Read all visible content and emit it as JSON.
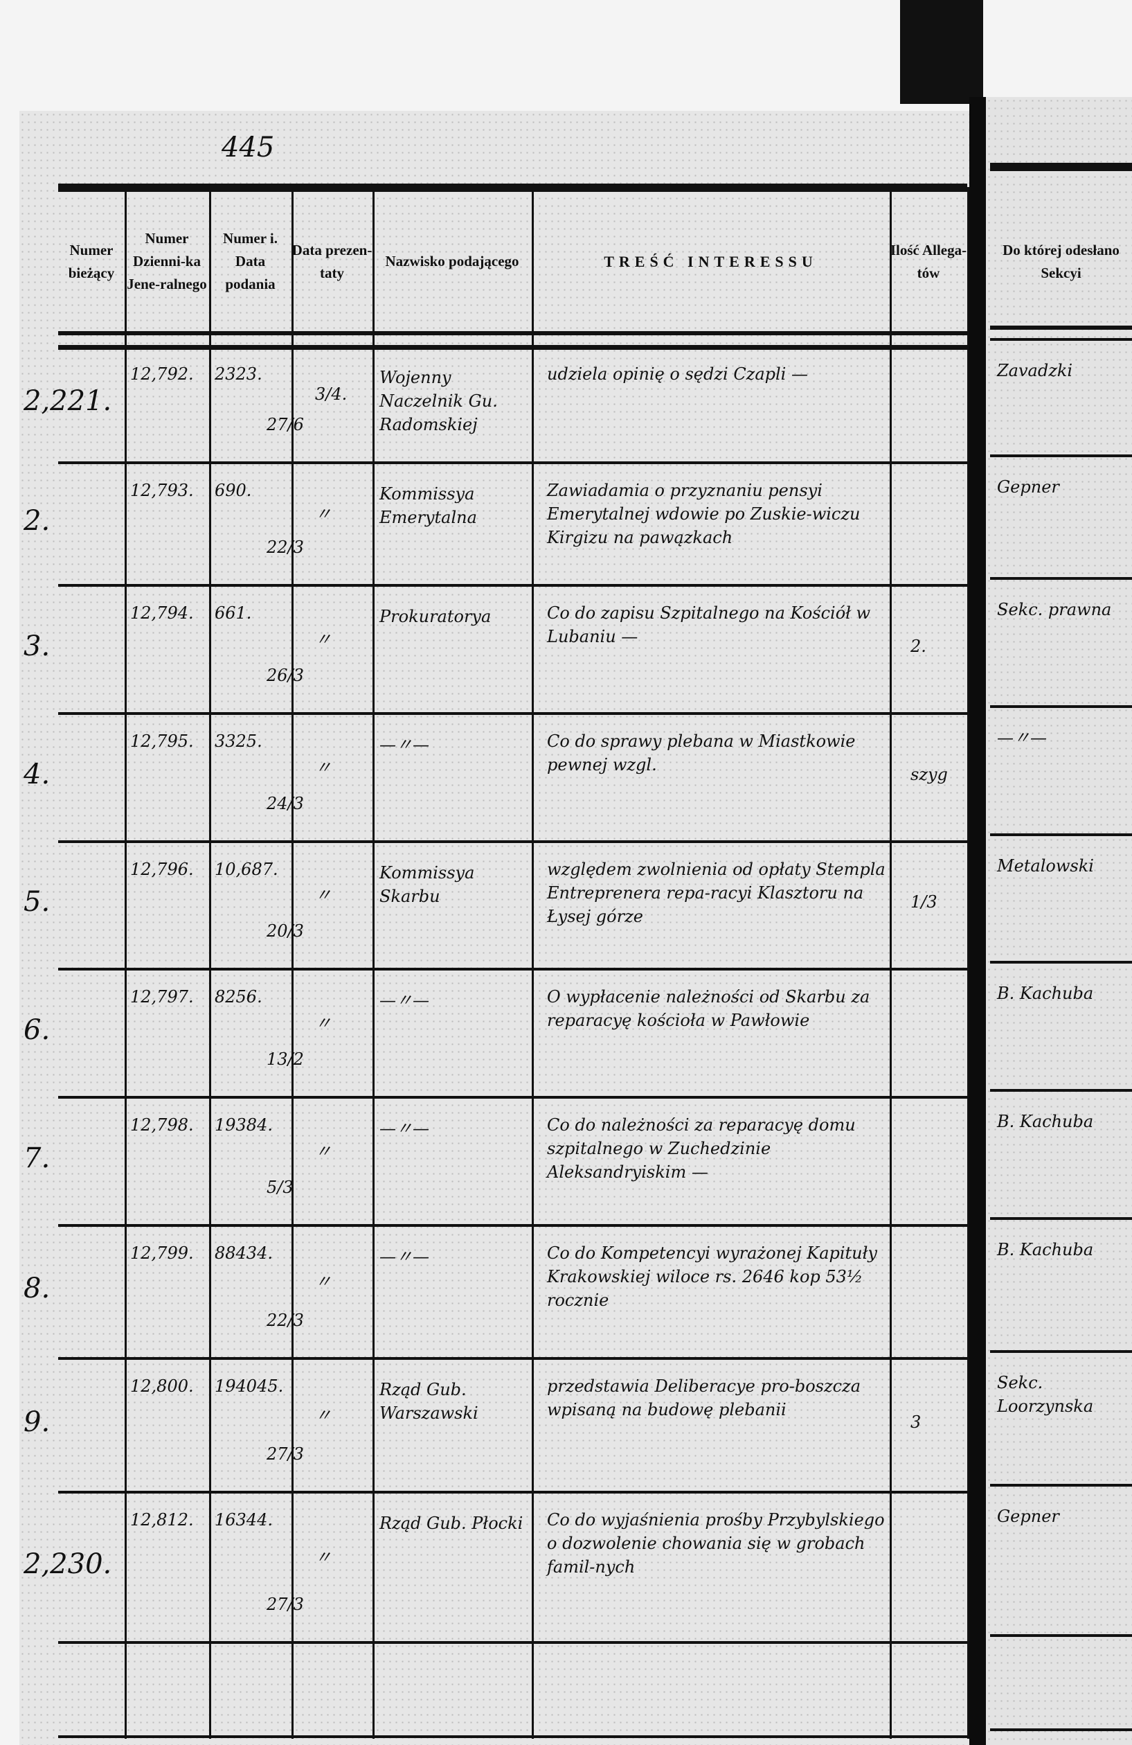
{
  "page_number": "445",
  "headers": [
    "Numer bieżący",
    "Numer Dzienni-ka Jene-ralnego",
    "Numer i. Data podania",
    "Data prezen-taty",
    "Nazwisko podającego",
    "TREŚĆ INTERESSU",
    "Ilość Allega-tów",
    "Do której odesłano Sekcyi"
  ],
  "rows": [
    {
      "no": "2,221.",
      "journal": "12,792.",
      "petition_no": "2323.",
      "petition_date": "27/6",
      "presented": "3/4.",
      "name": "Wojenny Naczelnik Gu. Radomskiej",
      "content": "udziela opinię o sędzi Czapli —",
      "attachments": "",
      "section": "Zavadzki"
    },
    {
      "no": "2.",
      "journal": "12,793.",
      "petition_no": "690.",
      "petition_date": "22/3",
      "presented": "〃",
      "name": "Kommissya Emerytalna",
      "content": "Zawiadamia o przyznaniu pensyi Emerytalnej wdowie po Zuskie-wiczu Kirgizu na pawązkach",
      "attachments": "",
      "section": "Gepner"
    },
    {
      "no": "3.",
      "journal": "12,794.",
      "petition_no": "661.",
      "petition_date": "26/3",
      "presented": "〃",
      "name": "Prokuratorya",
      "content": "Co do zapisu Szpitalnego na Kościół w Lubaniu —",
      "attachments": "2.",
      "section": "Sekc. prawna"
    },
    {
      "no": "4.",
      "journal": "12,795.",
      "petition_no": "3325.",
      "petition_date": "24/3",
      "presented": "〃",
      "name": "—〃—",
      "content": "Co do sprawy plebana w Miastkowie pewnej wzgl.",
      "attachments": "szyg",
      "section": "—〃—"
    },
    {
      "no": "5.",
      "journal": "12,796.",
      "petition_no": "10,687.",
      "petition_date": "20/3",
      "presented": "〃",
      "name": "Kommissya Skarbu",
      "content": "względem zwolnienia od opłaty Stempla Entreprenera repa-racyi Klasztoru na Łysej górze",
      "attachments": "1/3",
      "section": "Metalowski"
    },
    {
      "no": "6.",
      "journal": "12,797.",
      "petition_no": "8256.",
      "petition_date": "13/2",
      "presented": "〃",
      "name": "—〃—",
      "content": "O wypłacenie należności od Skarbu za reparacyę kościoła w Pawłowie",
      "attachments": "",
      "section": "B. Kachuba"
    },
    {
      "no": "7.",
      "journal": "12,798.",
      "petition_no": "19384.",
      "petition_date": "5/3",
      "presented": "〃",
      "name": "—〃—",
      "content": "Co do należności za reparacyę domu szpitalnego w Zuchedzinie Aleksandryiskim —",
      "attachments": "",
      "section": "B. Kachuba"
    },
    {
      "no": "8.",
      "journal": "12,799.",
      "petition_no": "88434.",
      "petition_date": "22/3",
      "presented": "〃",
      "name": "—〃—",
      "content": "Co do Kompetencyi wyrażonej Kapituły Krakowskiej wiloce rs. 2646 kop 53½ rocznie",
      "attachments": "",
      "section": "B. Kachuba"
    },
    {
      "no": "9.",
      "journal": "12,800.",
      "petition_no": "194045.",
      "petition_date": "27/3",
      "presented": "〃",
      "name": "Rząd Gub. Warszawski",
      "content": "przedstawia Deliberacye pro-boszcza wpisaną na budowę plebanii",
      "attachments": "3",
      "section": "Sekc. Loorzynska"
    },
    {
      "no": "2,230.",
      "journal": "12,812.",
      "petition_no": "16344.",
      "petition_date": "27/3",
      "presented": "〃",
      "name": "Rząd Gub. Płocki",
      "content": "Co do wyjaśnienia prośby Przybylskiego o dozwolenie chowania się w grobach famil-nych",
      "attachments": "",
      "section": "Gepner"
    }
  ]
}
